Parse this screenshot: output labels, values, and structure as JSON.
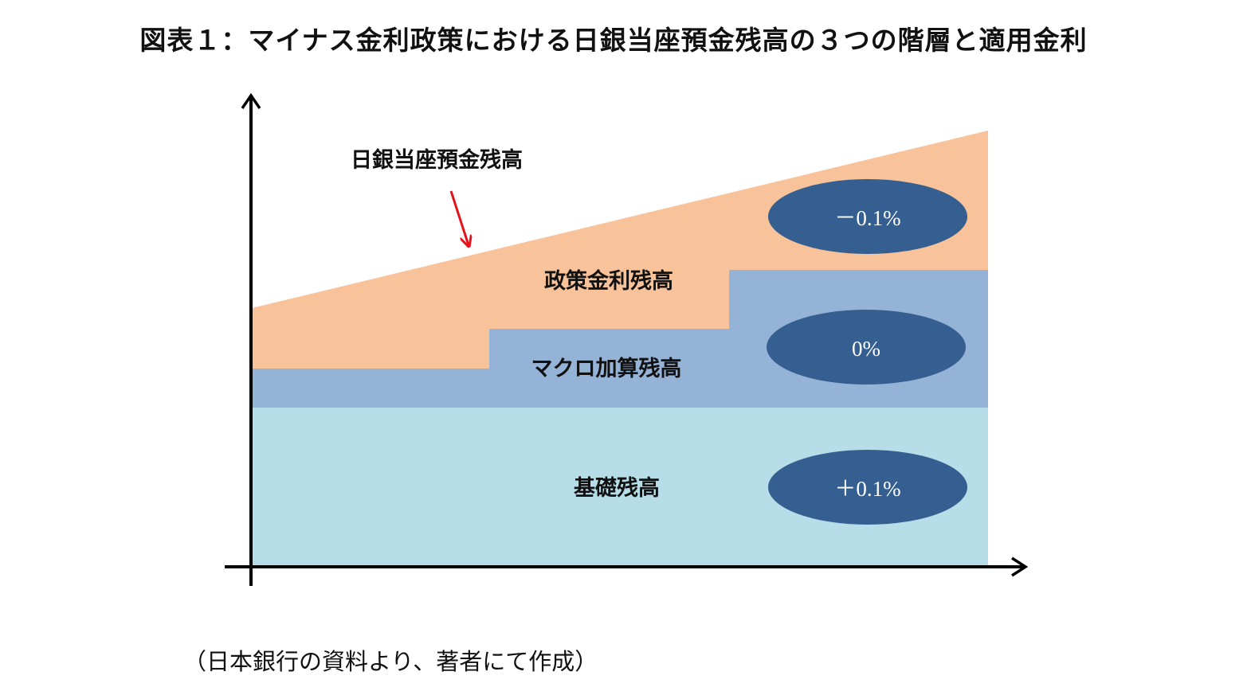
{
  "title": "図表１：マイナス金利政策における日銀当座預金残高の３つの階層と適用金利",
  "colors": {
    "policy_rate_tier": "#f8c39a",
    "macro_add_on_tier": "#95b3d7",
    "basic_tier": "#b7dde8",
    "rate_ellipse": "#365f91",
    "axis": "#000000",
    "pointer_arrow": "#e8121b"
  },
  "labels": {
    "total_balance": "日銀当座預金残高",
    "policy_rate_balance": "政策金利残高",
    "macro_add_on_balance": "マクロ加算残高",
    "basic_balance": "基礎残高"
  },
  "rates": {
    "policy_rate": "－0.1%",
    "macro_add_on": "0%",
    "basic": "＋0.1%"
  },
  "source": "（日本銀行の資料より、著者にて作成）"
}
